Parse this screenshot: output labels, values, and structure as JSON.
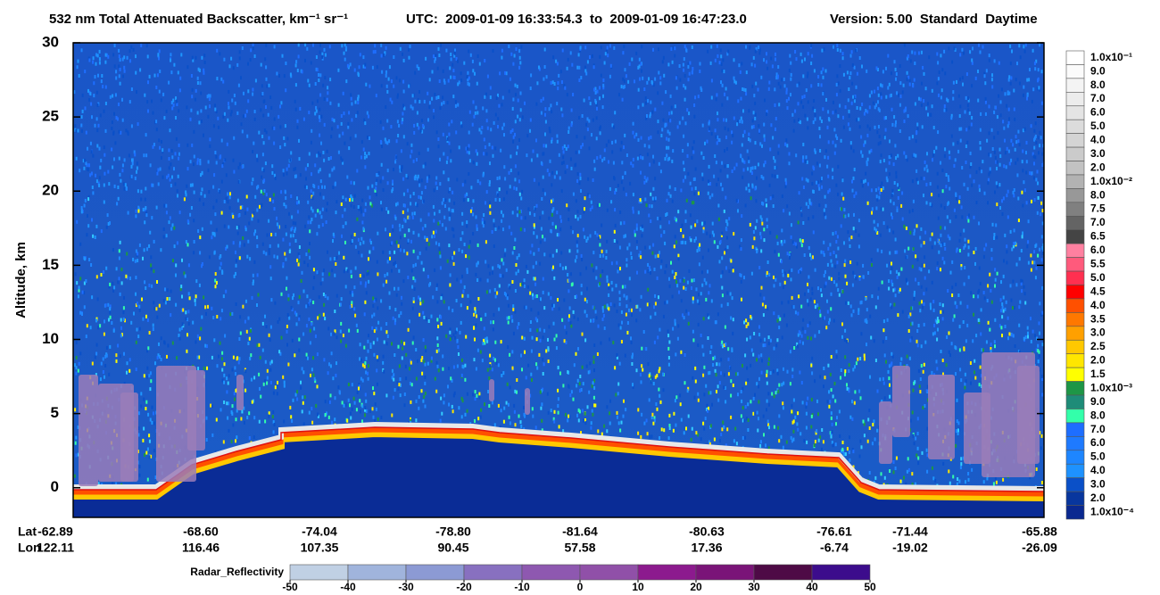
{
  "chart_data": {
    "type": "heatmap",
    "title": "532 nm Total Attenuated Backscatter, km⁻¹ sr⁻¹",
    "time_range": "UTC:  2009-01-09 16:33:54.3  to  2009-01-09 16:47:23.0",
    "version": "Version: 5.00  Standard  Daytime",
    "ylabel": "Altitude, km",
    "ylim": [
      -2,
      30
    ],
    "yticks": [
      0,
      5,
      10,
      15,
      20,
      25,
      30
    ],
    "x_rows": [
      {
        "name": "Lat",
        "values": [
          -62.89,
          {
            "value": -68.6,
            "label": "-68.60"
          },
          -74.04,
          {
            "value": -78.8,
            "label": "-78.80"
          },
          -81.64,
          -80.63,
          -76.61,
          -71.44,
          -65.88
        ]
      },
      {
        "name": "Lon",
        "values": [
          122.11,
          116.46,
          107.35,
          90.45,
          57.58,
          17.36,
          -6.74,
          -19.02,
          -26.09
        ]
      }
    ],
    "colorbar": {
      "labels": [
        "1.0x10⁻¹",
        "9.0",
        "8.0",
        "7.0",
        "6.0",
        "5.0",
        "4.0",
        "3.0",
        "2.0",
        "1.0x10⁻²",
        "8.0",
        "7.5",
        "7.0",
        "6.5",
        "6.0",
        "5.5",
        "5.0",
        "4.5",
        "4.0",
        "3.5",
        "3.0",
        "2.5",
        "2.0",
        "1.5",
        "1.0x10⁻³",
        "9.0",
        "8.0",
        "7.0",
        "6.0",
        "5.0",
        "4.0",
        "3.0",
        "2.0",
        "1.0x10⁻⁴"
      ],
      "colors": [
        "#ffffff",
        "#fbfbfb",
        "#f4f4f4",
        "#ececec",
        "#e4e4e4",
        "#dcdcdc",
        "#d4d4d4",
        "#cbcbcb",
        "#c2c2c2",
        "#b2b2b2",
        "#989898",
        "#808080",
        "#646464",
        "#444444",
        "#ff80a0",
        "#ff5a7c",
        "#ff3050",
        "#ff0000",
        "#ff5000",
        "#ff7800",
        "#ffa000",
        "#ffc800",
        "#ffe600",
        "#ffff00",
        "#1e9646",
        "#1e8c78",
        "#33ffaa",
        "#1e6eff",
        "#1e7aff",
        "#1e86ff",
        "#1e92ff",
        "#0a50c8",
        "#08369e",
        "#0a2890"
      ]
    },
    "colorbar2": {
      "label": "Radar_Reflectivity",
      "lim": [
        -50,
        50
      ],
      "ticks": [
        -50,
        -40,
        -30,
        -20,
        -10,
        0,
        10,
        20,
        30,
        40,
        50
      ],
      "colors": [
        "#c0d0e4",
        "#a0b4dc",
        "#8c9ad4",
        "#8870c0",
        "#8e58b0",
        "#9050a8",
        "#8c1a8e",
        "#7a1478",
        "#4e0a46",
        "#3c0c8c"
      ]
    }
  }
}
